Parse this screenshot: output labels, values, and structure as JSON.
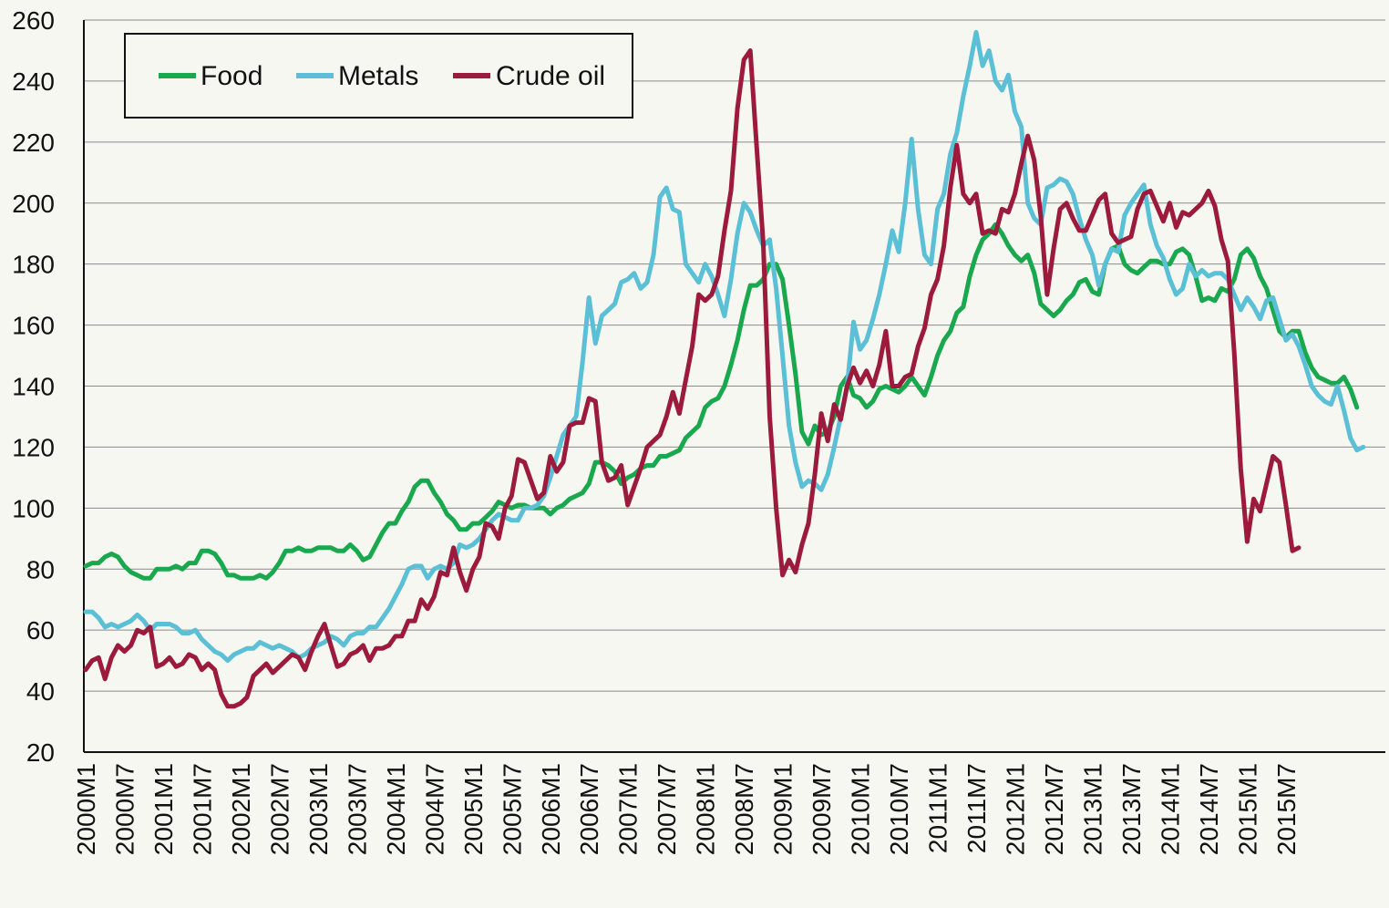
{
  "chart_data": {
    "type": "line",
    "title": "",
    "xlabel": "",
    "ylabel": "",
    "ylim": [
      20,
      260
    ],
    "y_ticks": [
      "20",
      "40",
      "60",
      "80",
      "100",
      "120",
      "140",
      "160",
      "180",
      "200",
      "220",
      "240",
      "260"
    ],
    "grid": true,
    "legend_placement": "top-left",
    "start_month": "2000M1",
    "x_tick_labels": [
      "2000M1",
      "2000M7",
      "2001M1",
      "2001M7",
      "2002M1",
      "2002M7",
      "2003M1",
      "2003M7",
      "2004M1",
      "2004M7",
      "2005M1",
      "2005M7",
      "2006M1",
      "2006M7",
      "2007M1",
      "2007M7",
      "2008M1",
      "2008M7",
      "2009M1",
      "2009M7",
      "2010M1",
      "2010M7",
      "2011M1",
      "2011M7",
      "2012M1",
      "2012M7",
      "2013M1",
      "2013M7",
      "2014M1",
      "2014M7",
      "2015M1",
      "2015M7"
    ],
    "series": [
      {
        "name": "Food",
        "color": "#1aa84f",
        "values": [
          81,
          82,
          82,
          84,
          85,
          84,
          81,
          79,
          78,
          77,
          77,
          80,
          80,
          80,
          81,
          80,
          82,
          82,
          86,
          86,
          85,
          82,
          78,
          78,
          77,
          77,
          77,
          78,
          77,
          79,
          82,
          86,
          86,
          87,
          86,
          86,
          87,
          87,
          87,
          86,
          86,
          88,
          86,
          83,
          84,
          88,
          92,
          95,
          95,
          99,
          102,
          107,
          109,
          109,
          105,
          102,
          98,
          96,
          93,
          93,
          95,
          95,
          97,
          99,
          102,
          101,
          100,
          101,
          101,
          100,
          100,
          100,
          98,
          100,
          101,
          103,
          104,
          105,
          108,
          115,
          115,
          114,
          112,
          108,
          110,
          111,
          113,
          114,
          114,
          117,
          117,
          118,
          119,
          123,
          125,
          127,
          133,
          135,
          136,
          140,
          147,
          155,
          165,
          173,
          173,
          175,
          180,
          180,
          175,
          160,
          144,
          125,
          121,
          127,
          124,
          125,
          130,
          140,
          143,
          137,
          136,
          133,
          135,
          139,
          140,
          139,
          138,
          140,
          143,
          140,
          137,
          143,
          150,
          155,
          158,
          164,
          166,
          176,
          183,
          188,
          190,
          193,
          190,
          186,
          183,
          181,
          183,
          177,
          167,
          165,
          163,
          165,
          168,
          170,
          174,
          175,
          171,
          170,
          180,
          185,
          186,
          180,
          178,
          177,
          179,
          181,
          181,
          180,
          180,
          184,
          185,
          183,
          176,
          168,
          169,
          168,
          172,
          171,
          175,
          183,
          185,
          182,
          176,
          172,
          165,
          158,
          156,
          158,
          158,
          151,
          146,
          143,
          142,
          141,
          141,
          143,
          139,
          133
        ]
      },
      {
        "name": "Metals",
        "color": "#5bbfd6",
        "values": [
          66,
          66,
          64,
          61,
          62,
          61,
          62,
          63,
          65,
          63,
          60,
          62,
          62,
          62,
          61,
          59,
          59,
          60,
          57,
          55,
          53,
          52,
          50,
          52,
          53,
          54,
          54,
          56,
          55,
          54,
          55,
          54,
          53,
          51,
          52,
          54,
          55,
          56,
          58,
          57,
          55,
          58,
          59,
          59,
          61,
          61,
          64,
          67,
          71,
          75,
          80,
          81,
          81,
          77,
          80,
          81,
          80,
          82,
          88,
          87,
          88,
          90,
          93,
          96,
          98,
          97,
          96,
          96,
          100,
          100,
          101,
          104,
          110,
          117,
          124,
          127,
          130,
          148,
          169,
          154,
          163,
          165,
          167,
          174,
          175,
          177,
          172,
          174,
          183,
          202,
          205,
          198,
          197,
          180,
          177,
          174,
          180,
          176,
          170,
          163,
          175,
          190,
          200,
          197,
          191,
          186,
          188,
          172,
          150,
          127,
          115,
          107,
          109,
          108,
          106,
          111,
          120,
          130,
          140,
          161,
          152,
          155,
          162,
          170,
          180,
          191,
          184,
          200,
          221,
          198,
          183,
          180,
          198,
          203,
          216,
          223,
          235,
          245,
          256,
          245,
          250,
          240,
          237,
          242,
          230,
          225,
          200,
          195,
          193,
          205,
          206,
          208,
          207,
          203,
          195,
          188,
          183,
          173,
          180,
          185,
          184,
          196,
          200,
          203,
          206,
          193,
          186,
          182,
          175,
          170,
          172,
          180,
          176,
          178,
          176,
          177,
          177,
          175,
          170,
          165,
          169,
          166,
          162,
          168,
          169,
          162,
          155,
          157,
          153,
          147,
          140,
          137,
          135,
          134,
          140,
          132,
          123,
          119,
          120
        ]
      },
      {
        "name": "Crude oil",
        "color": "#9c1a3c",
        "values": [
          47,
          50,
          51,
          44,
          51,
          55,
          53,
          55,
          60,
          59,
          61,
          48,
          49,
          51,
          48,
          49,
          52,
          51,
          47,
          49,
          47,
          39,
          35,
          35,
          36,
          38,
          45,
          47,
          49,
          46,
          48,
          50,
          52,
          51,
          47,
          53,
          58,
          62,
          55,
          48,
          49,
          52,
          53,
          55,
          50,
          54,
          54,
          55,
          58,
          58,
          63,
          63,
          70,
          67,
          71,
          79,
          78,
          87,
          79,
          73,
          80,
          84,
          95,
          94,
          90,
          100,
          104,
          116,
          115,
          109,
          103,
          105,
          117,
          112,
          115,
          127,
          128,
          128,
          136,
          135,
          115,
          109,
          110,
          114,
          101,
          107,
          113,
          120,
          122,
          124,
          130,
          138,
          131,
          142,
          153,
          170,
          168,
          170,
          176,
          191,
          204,
          231,
          247,
          250,
          218,
          187,
          130,
          100,
          78,
          83,
          79,
          88,
          95,
          111,
          131,
          122,
          134,
          129,
          140,
          146,
          141,
          145,
          140,
          147,
          158,
          140,
          140,
          143,
          144,
          153,
          159,
          170,
          175,
          186,
          205,
          219,
          203,
          200,
          203,
          190,
          191,
          190,
          198,
          197,
          203,
          213,
          222,
          214,
          196,
          170,
          185,
          198,
          200,
          195,
          191,
          191,
          196,
          201,
          203,
          190,
          187,
          188,
          189,
          198,
          203,
          204,
          199,
          194,
          200,
          192,
          197,
          196,
          198,
          200,
          204,
          199,
          188,
          181,
          151,
          113,
          89,
          103,
          99,
          108,
          117,
          115,
          101,
          86,
          87
        ]
      }
    ]
  }
}
